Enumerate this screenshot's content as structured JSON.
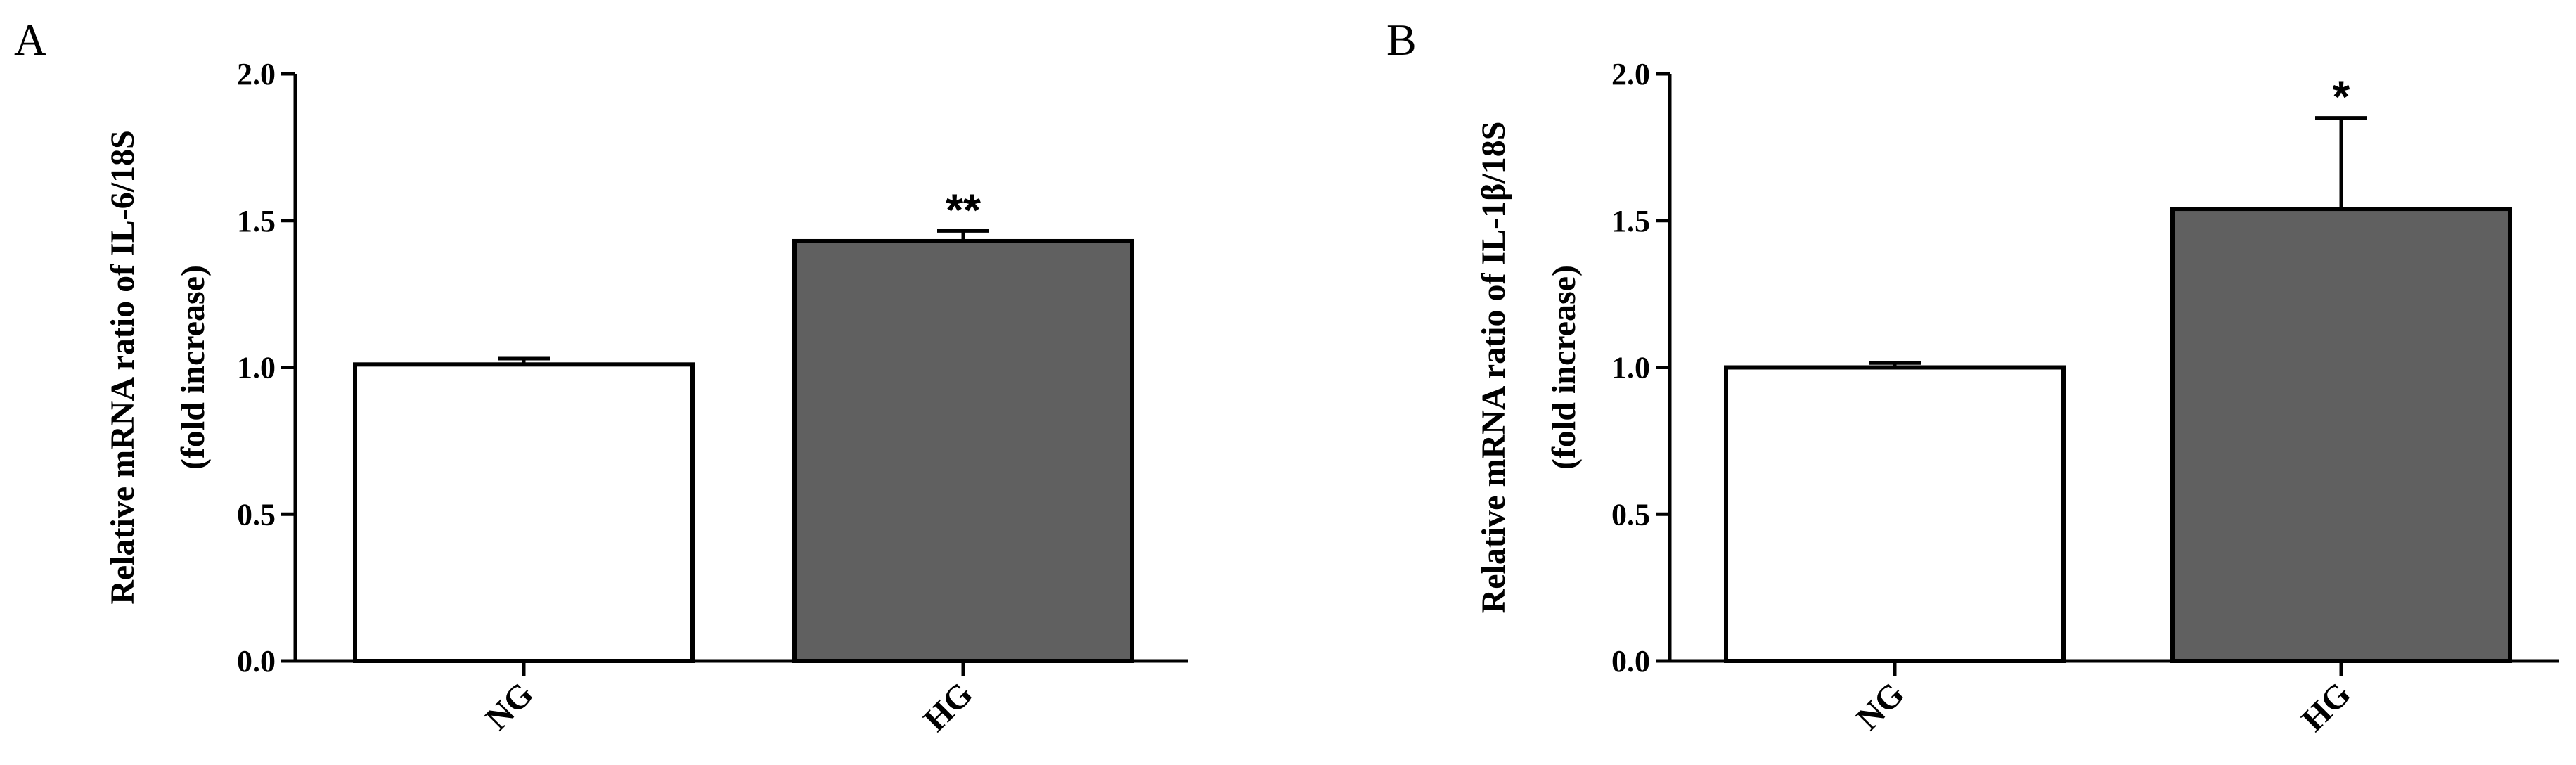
{
  "chart_data": [
    {
      "type": "bar",
      "panel": "A",
      "categories": [
        "NG",
        "HG"
      ],
      "values": [
        1.01,
        1.43
      ],
      "errors": [
        0.02,
        0.035
      ],
      "significance": [
        "",
        "**"
      ],
      "bar_colors": [
        "#ffffff",
        "#606060"
      ],
      "ylabel": "Relative mRNA ratio of IL-6/18S",
      "ylabel2": "(fold increase)",
      "ylim": [
        0,
        2.0
      ],
      "yticks": [
        "0.0",
        "0.5",
        "1.0",
        "1.5",
        "2.0"
      ]
    },
    {
      "type": "bar",
      "panel": "B",
      "categories": [
        "NG",
        "HG"
      ],
      "values": [
        1.0,
        1.54
      ],
      "errors": [
        0.015,
        0.31
      ],
      "significance": [
        "",
        "*"
      ],
      "bar_colors": [
        "#ffffff",
        "#606060"
      ],
      "ylabel": "Relative mRNA ratio of IL-1β/18S",
      "ylabel2": "(fold increase)",
      "ylim": [
        0,
        2.0
      ],
      "yticks": [
        "0.0",
        "0.5",
        "1.0",
        "1.5",
        "2.0"
      ]
    }
  ]
}
